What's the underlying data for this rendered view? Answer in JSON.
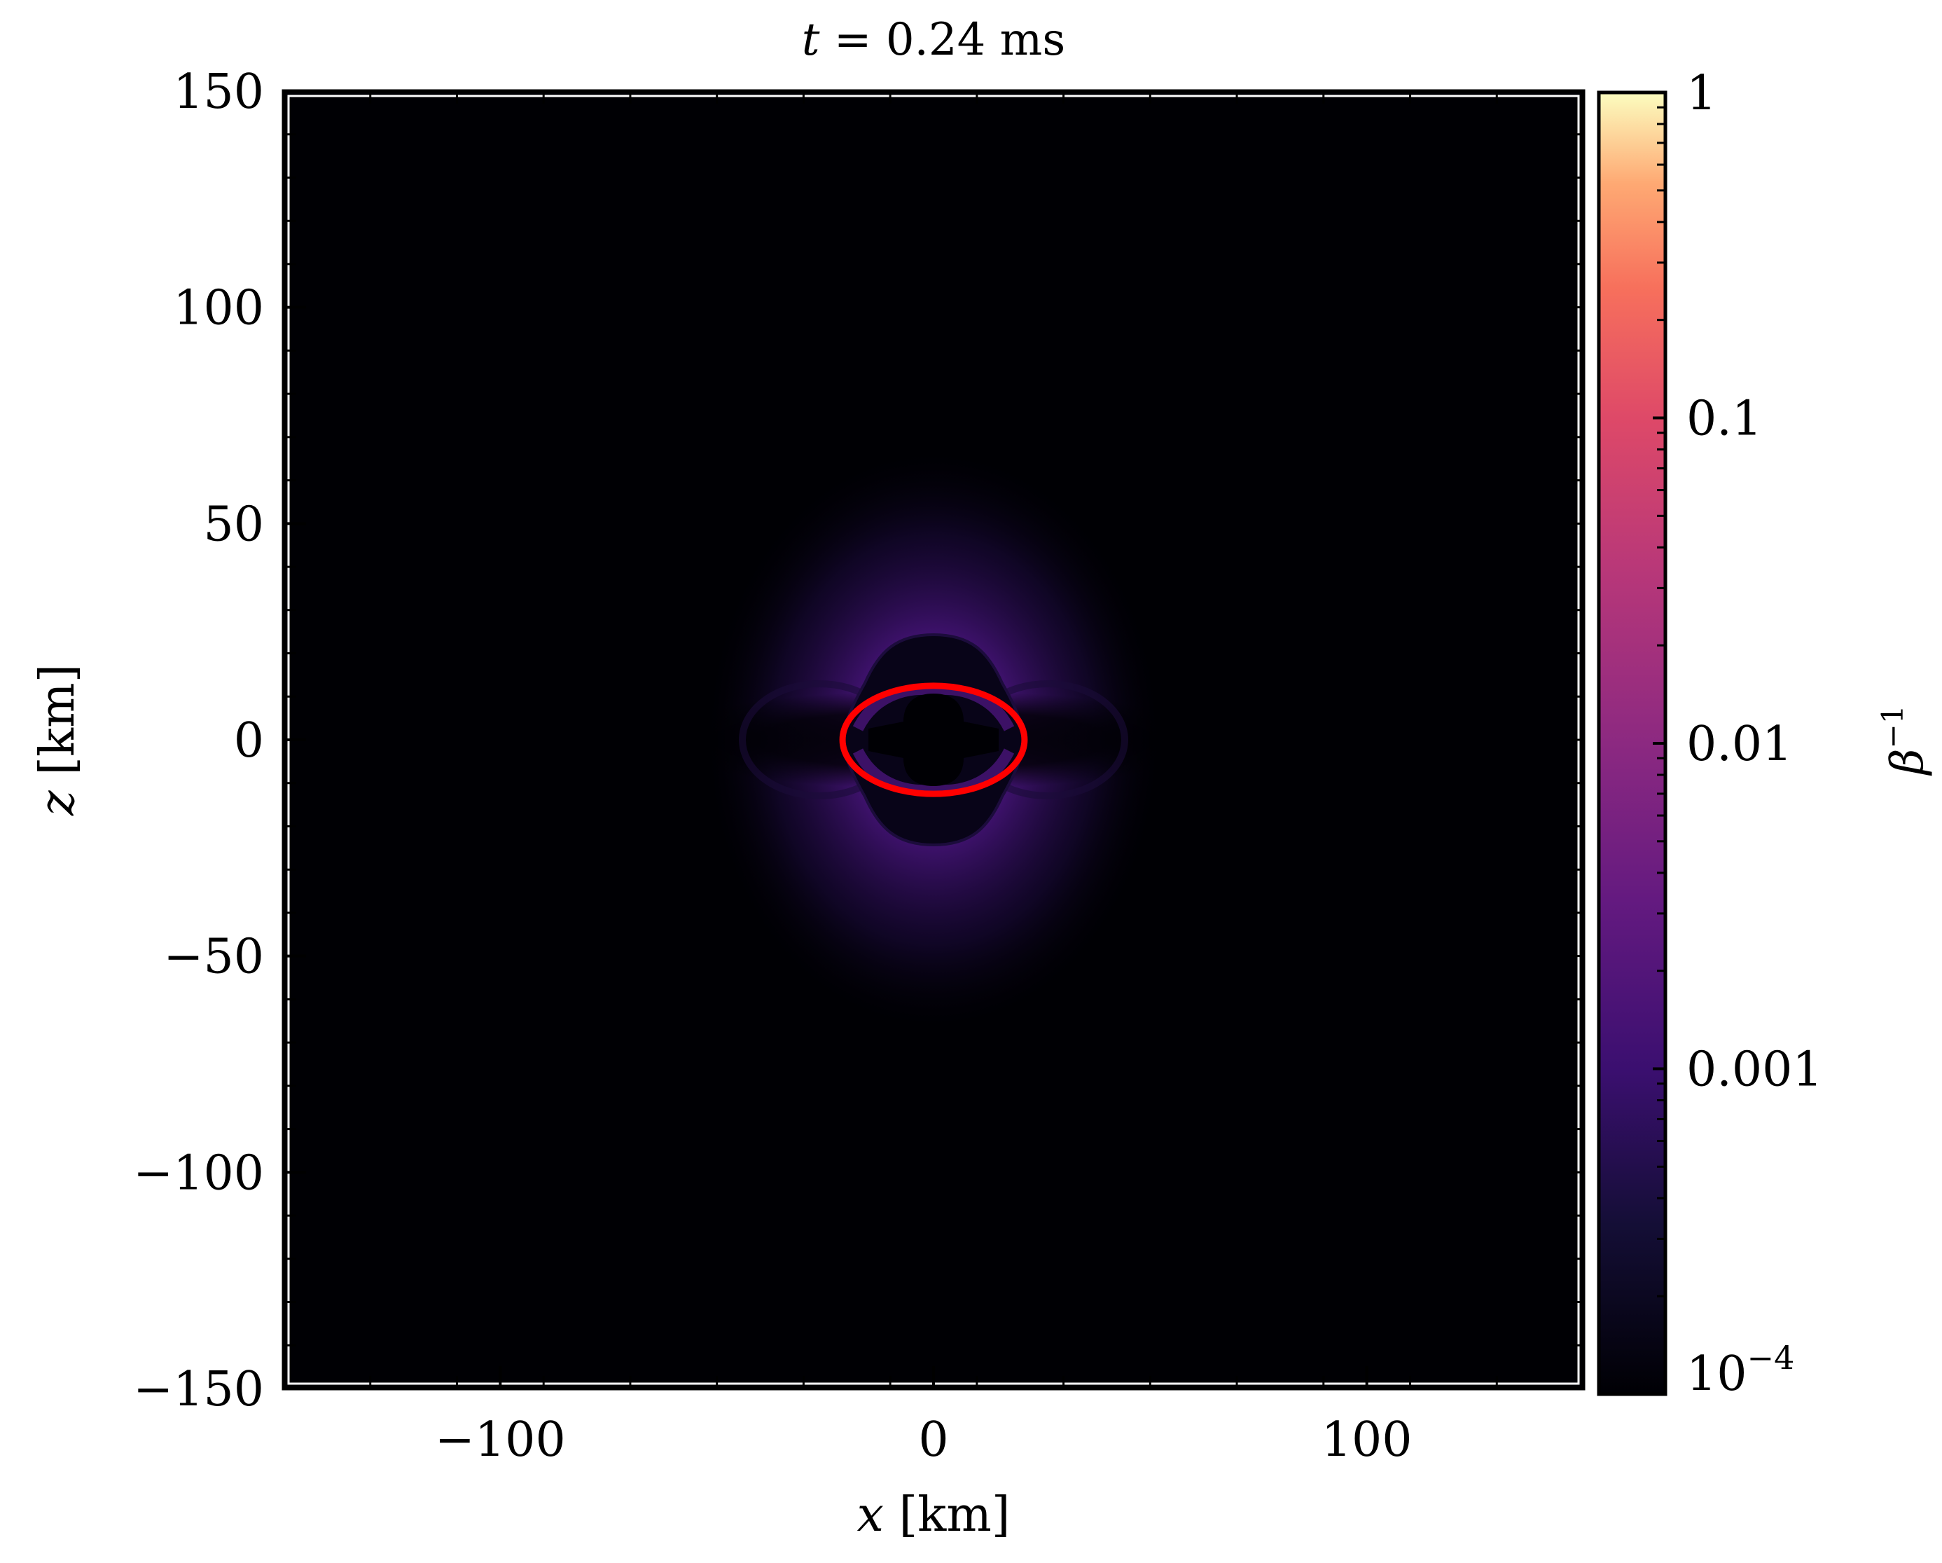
{
  "chart_data": {
    "type": "heatmap",
    "title": "t = 0.24 ms",
    "title_parts": {
      "var": "t",
      "eq": " = 0.24 ",
      "unit": "ms"
    },
    "xlabel": "x [km]",
    "ylabel": "z [km]",
    "xlabel_parts": {
      "var": "x",
      "unit": " [km]"
    },
    "ylabel_parts": {
      "var": "z",
      "unit": " [km]"
    },
    "xlim": [
      -150,
      150
    ],
    "ylim": [
      -150,
      150
    ],
    "xticks": [
      -100,
      0,
      100
    ],
    "xtick_labels": [
      "−100",
      "0",
      "100"
    ],
    "yticks": [
      150,
      100,
      50,
      0,
      -50,
      -100,
      -150
    ],
    "ytick_labels": [
      "150",
      "100",
      "50",
      "0",
      "−50",
      "−100",
      "−150"
    ],
    "minor_step": 20,
    "colorbar": {
      "label": "β",
      "label_sup": "−1",
      "scale": "log",
      "range_log10": [
        -4,
        0
      ],
      "ticks_log10": [
        0,
        -1,
        -2,
        -3,
        -4
      ],
      "tick_labels": [
        "1",
        "0.1",
        "0.01",
        "0.001",
        "10"
      ],
      "last_label_sup": "−4",
      "colormap": "magma"
    },
    "contour": {
      "color": "#ff0000",
      "center": [
        0,
        0
      ],
      "semi_axis_x_km": 21,
      "semi_axis_z_km": 12.5
    },
    "features": {
      "background_log10": -4,
      "lobe_peak_log10": -2.8,
      "lobe_extent_km": 50
    }
  }
}
